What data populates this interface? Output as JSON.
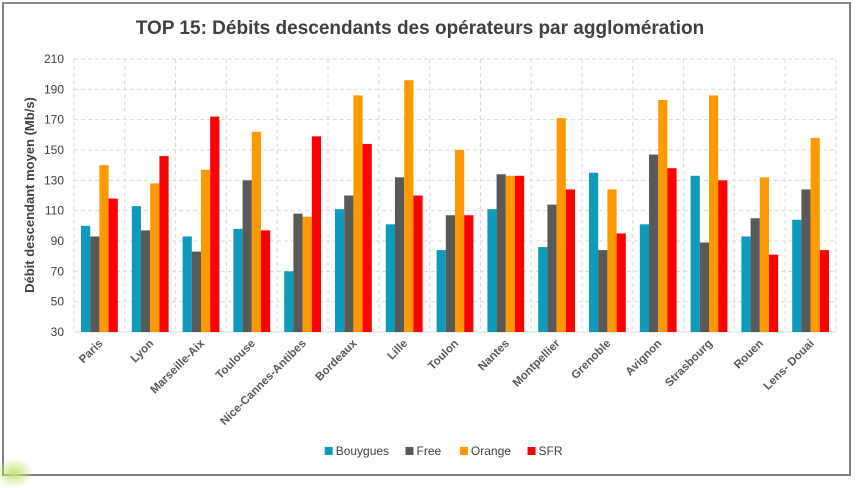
{
  "chart_data": {
    "type": "bar",
    "title": "TOP 15: Débits descendants des opérateurs par agglomération",
    "xlabel": "",
    "ylabel": "Débit descendant moyen (Mb/s)",
    "ylim": [
      30,
      210
    ],
    "yticks": [
      30,
      50,
      70,
      90,
      110,
      130,
      150,
      170,
      190,
      210
    ],
    "grid": true,
    "legend_position": "bottom",
    "categories": [
      "Paris",
      "Lyon",
      "Marseille-Aix",
      "Toulouse",
      "Nice-Cannes-Antibes",
      "Bordeaux",
      "Lille",
      "Toulon",
      "Nantes",
      "Montpellier",
      "Grenoble",
      "Avignon",
      "Strasbourg",
      "Rouen",
      "Lens- Douai"
    ],
    "series": [
      {
        "name": "Bouygues",
        "color": "#0e9abb",
        "values": [
          100,
          113,
          93,
          98,
          70,
          111,
          101,
          84,
          111,
          86,
          135,
          101,
          133,
          93,
          104
        ]
      },
      {
        "name": "Free",
        "color": "#595959",
        "values": [
          93,
          97,
          83,
          130,
          108,
          120,
          132,
          107,
          134,
          114,
          84,
          147,
          89,
          105,
          124
        ]
      },
      {
        "name": "Orange",
        "color": "#ff9900",
        "values": [
          140,
          128,
          137,
          162,
          106,
          186,
          196,
          150,
          133,
          171,
          124,
          183,
          186,
          132,
          158
        ]
      },
      {
        "name": "SFR",
        "color": "#ff0000",
        "values": [
          118,
          146,
          172,
          97,
          159,
          154,
          120,
          107,
          133,
          124,
          95,
          138,
          130,
          81,
          84
        ]
      }
    ]
  }
}
